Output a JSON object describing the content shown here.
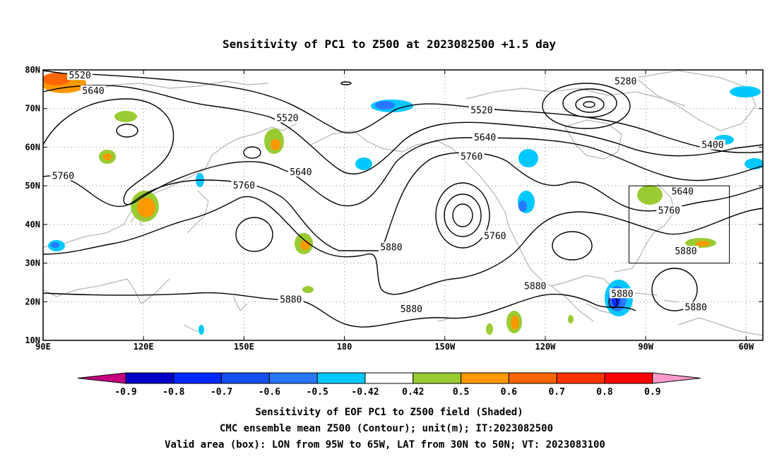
{
  "title": "Sensitivity of PC1 to Z500 at 2023082500 +1.5 day",
  "map": {
    "lon_range": [
      "90E",
      "305E"
    ],
    "lat_range": [
      10,
      80
    ],
    "lat_labels": [
      "80N",
      "70N",
      "60N",
      "50N",
      "40N",
      "30N",
      "20N",
      "10N"
    ],
    "lon_labels": [
      "90E",
      "120E",
      "150E",
      "180",
      "150W",
      "120W",
      "90W",
      "60W"
    ],
    "coastline_color": "#b4b4b4",
    "contour_color": "#000000",
    "grid_style": "dotted"
  },
  "valid_box": {
    "lon": [
      "95W",
      "65W"
    ],
    "lat": [
      "30N",
      "50N"
    ]
  },
  "contour_labels": [
    {
      "text": "5520",
      "lon": 101,
      "lat": 78.5
    },
    {
      "text": "5640",
      "lon": 105,
      "lat": 74.5
    },
    {
      "text": "5520",
      "lon": 163,
      "lat": 67.5
    },
    {
      "text": "5520",
      "lon": 221,
      "lat": 69.5
    },
    {
      "text": "5640",
      "lon": 222,
      "lat": 62.5
    },
    {
      "text": "5760",
      "lon": 218,
      "lat": 57.5
    },
    {
      "text": "5640",
      "lon": 167,
      "lat": 53.5
    },
    {
      "text": "5760",
      "lon": 96,
      "lat": 52.5
    },
    {
      "text": "5760",
      "lon": 150,
      "lat": 50
    },
    {
      "text": "5280",
      "lon": 264,
      "lat": 77
    },
    {
      "text": "5400",
      "lon": 290,
      "lat": 60.5
    },
    {
      "text": "5640",
      "lon": 281,
      "lat": 48.5
    },
    {
      "text": "5760",
      "lon": 277,
      "lat": 43.5
    },
    {
      "text": "5760",
      "lon": 225,
      "lat": 37
    },
    {
      "text": "5880",
      "lon": 194,
      "lat": 34
    },
    {
      "text": "5880",
      "lon": 282,
      "lat": 33
    },
    {
      "text": "5880",
      "lon": 237,
      "lat": 24
    },
    {
      "text": "5880",
      "lon": 164,
      "lat": 20.5
    },
    {
      "text": "5880",
      "lon": 200,
      "lat": 18
    },
    {
      "text": "5880",
      "lon": 263,
      "lat": 22
    },
    {
      "text": "5880",
      "lon": 285,
      "lat": 18.5
    }
  ],
  "colorbar": {
    "levels": [
      "-0.9",
      "-0.8",
      "-0.7",
      "-0.6",
      "-0.5",
      "-0.42",
      "0.42",
      "0.5",
      "0.6",
      "0.7",
      "0.8",
      "0.9"
    ],
    "colors": [
      "#c4007f",
      "#0000c8",
      "#0028ff",
      "#1450f0",
      "#2878ff",
      "#00c8ff",
      "#ffffff",
      "#99cc33",
      "#ff9900",
      "#ff6600",
      "#ff3300",
      "#ff0000",
      "#ff99cc"
    ]
  },
  "footer": {
    "line1": "Sensitivity of EOF PC1 to Z500 field (Shaded)",
    "line2": "CMC ensemble mean Z500 (Contour); unit(m); IT:2023082500",
    "line3": "Valid area (box): LON from 95W to 65W, LAT from 30N to 50N; VT: 2023083100"
  }
}
